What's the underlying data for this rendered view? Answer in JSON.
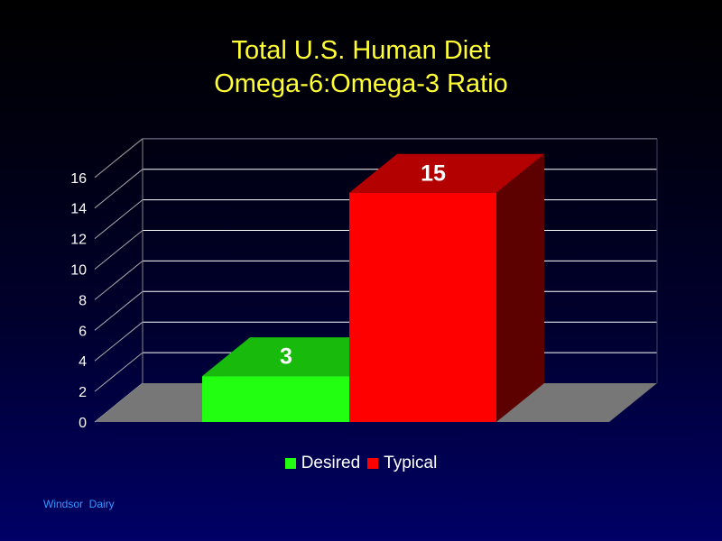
{
  "colors": {
    "background_top": "#000000",
    "background_bottom": "#000066",
    "title": "#FFFF33",
    "footer": "#3399FF",
    "floor": "#777777",
    "gridline": "#FFFFFF"
  },
  "title": {
    "line1": "Total U.S. Human Diet",
    "line2": "Omega-6:Omega-3 Ratio"
  },
  "footer": "Windsor  Dairy",
  "chart_data": {
    "type": "bar",
    "style": "3d",
    "categories": [
      "Desired",
      "Typical"
    ],
    "values": [
      3,
      15
    ],
    "data_labels": [
      "3",
      "15"
    ],
    "series": [
      {
        "name": "Desired",
        "value": 3,
        "color_front": "#22FF11",
        "color_top": "#18BB0C",
        "color_side": "#118811"
      },
      {
        "name": "Typical",
        "value": 15,
        "color_front": "#FF0000",
        "color_top": "#B30000",
        "color_side": "#5C0000"
      }
    ],
    "y_ticks": [
      "0",
      "2",
      "4",
      "6",
      "8",
      "10",
      "12",
      "14",
      "16"
    ],
    "ylim": [
      0,
      16
    ],
    "grid": true,
    "legend_position": "bottom"
  }
}
